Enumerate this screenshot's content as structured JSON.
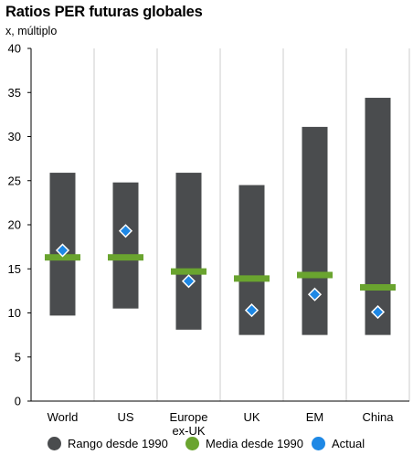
{
  "title": "Ratios PER futuras globales",
  "subtitle": "x, múltiplo",
  "colors": {
    "range": "#4a4c4e",
    "mean": "#6aa42f",
    "current": "#1e88e5",
    "grid": "#cccccc"
  },
  "chart_data": {
    "type": "range-bar",
    "title": "Ratios PER futuras globales",
    "ylabel": "x, múltiplo",
    "ylim": [
      0,
      40
    ],
    "yticks": [
      0,
      5,
      10,
      15,
      20,
      25,
      30,
      35,
      40
    ],
    "categories": [
      "World",
      "US",
      "Europe ex-UK",
      "UK",
      "EM",
      "China"
    ],
    "category_labels": [
      [
        "World"
      ],
      [
        "US"
      ],
      [
        "Europe",
        "ex-UK"
      ],
      [
        "UK"
      ],
      [
        "EM"
      ],
      [
        "China"
      ]
    ],
    "series": [
      {
        "name": "Rango desde 1990",
        "kind": "range",
        "low": [
          9.7,
          10.5,
          8.1,
          7.5,
          7.5,
          7.5
        ],
        "high": [
          25.9,
          24.8,
          25.9,
          24.5,
          31.1,
          34.4
        ]
      },
      {
        "name": "Media desde 1990",
        "kind": "mean",
        "values": [
          16.3,
          16.3,
          14.7,
          13.9,
          14.3,
          12.9
        ]
      },
      {
        "name": "Actual",
        "kind": "current",
        "values": [
          17.1,
          19.3,
          13.6,
          10.3,
          12.1,
          10.1
        ]
      }
    ],
    "grid": true,
    "legend": "bottom"
  },
  "legend": [
    {
      "label": "Rango desde 1990",
      "color": "#4a4c4e"
    },
    {
      "label": "Media desde 1990",
      "color": "#6aa42f"
    },
    {
      "label": "Actual",
      "color": "#1e88e5"
    }
  ]
}
